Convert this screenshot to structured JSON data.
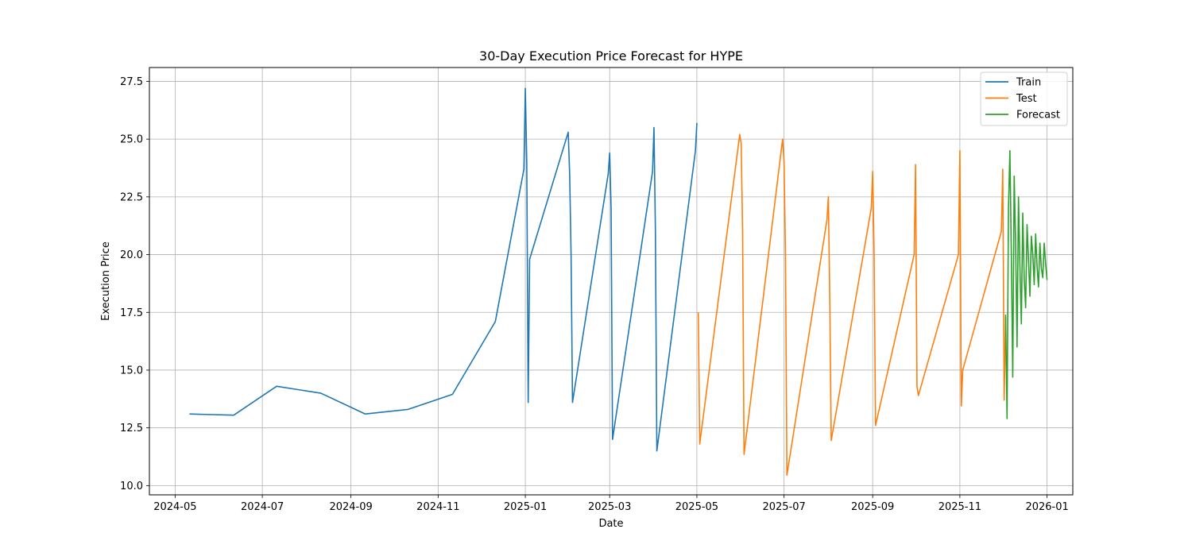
{
  "chart_data": {
    "type": "line",
    "title": "30-Day Execution Price Forecast for HYPE",
    "xlabel": "Date",
    "ylabel": "Execution Price",
    "xlim": [
      "2024-04-13",
      "2026-01-19"
    ],
    "ylim": [
      9.6,
      28.1
    ],
    "grid": true,
    "legend_position": "top-right",
    "x_ticks": [
      "2024-05",
      "2024-07",
      "2024-09",
      "2024-11",
      "2025-01",
      "2025-03",
      "2025-05",
      "2025-07",
      "2025-09",
      "2025-11",
      "2026-01"
    ],
    "y_ticks": [
      10.0,
      12.5,
      15.0,
      17.5,
      20.0,
      22.5,
      25.0,
      27.5
    ],
    "series": [
      {
        "name": "Train",
        "color": "#1f77b4",
        "points": [
          [
            "2024-05-11",
            13.1
          ],
          [
            "2024-06-11",
            13.05
          ],
          [
            "2024-07-11",
            14.3
          ],
          [
            "2024-08-11",
            14.0
          ],
          [
            "2024-09-11",
            13.1
          ],
          [
            "2024-10-11",
            13.3
          ],
          [
            "2024-11-11",
            13.95
          ],
          [
            "2024-12-11",
            17.1
          ],
          [
            "2024-12-31",
            23.7
          ],
          [
            "2025-01-01",
            27.2
          ],
          [
            "2025-01-02",
            24.0
          ],
          [
            "2025-01-03",
            13.6
          ],
          [
            "2025-01-04",
            19.8
          ],
          [
            "2025-01-31",
            25.3
          ],
          [
            "2025-02-01",
            23.5
          ],
          [
            "2025-02-02",
            20.0
          ],
          [
            "2025-02-03",
            13.6
          ],
          [
            "2025-02-28",
            23.5
          ],
          [
            "2025-03-01",
            24.4
          ],
          [
            "2025-03-02",
            22.0
          ],
          [
            "2025-03-03",
            12.0
          ],
          [
            "2025-03-31",
            23.6
          ],
          [
            "2025-04-01",
            25.5
          ],
          [
            "2025-04-02",
            21.0
          ],
          [
            "2025-04-03",
            11.5
          ],
          [
            "2025-04-30",
            24.5
          ],
          [
            "2025-05-01",
            25.7
          ]
        ]
      },
      {
        "name": "Test",
        "color": "#ff7f0e",
        "points": [
          [
            "2025-05-02",
            17.5
          ],
          [
            "2025-05-03",
            11.8
          ],
          [
            "2025-05-31",
            25.2
          ],
          [
            "2025-06-01",
            24.8
          ],
          [
            "2025-06-02",
            21.0
          ],
          [
            "2025-06-03",
            11.35
          ],
          [
            "2025-06-30",
            25.0
          ],
          [
            "2025-07-01",
            24.0
          ],
          [
            "2025-07-02",
            20.0
          ],
          [
            "2025-07-03",
            10.45
          ],
          [
            "2025-07-31",
            21.5
          ],
          [
            "2025-08-01",
            22.5
          ],
          [
            "2025-08-02",
            18.0
          ],
          [
            "2025-08-03",
            11.95
          ],
          [
            "2025-08-31",
            22.0
          ],
          [
            "2025-09-01",
            23.6
          ],
          [
            "2025-09-02",
            20.0
          ],
          [
            "2025-09-03",
            12.6
          ],
          [
            "2025-09-30",
            20.0
          ],
          [
            "2025-10-01",
            23.9
          ],
          [
            "2025-10-02",
            14.3
          ],
          [
            "2025-10-03",
            13.9
          ],
          [
            "2025-10-31",
            20.0
          ],
          [
            "2025-11-01",
            24.5
          ],
          [
            "2025-11-02",
            13.45
          ],
          [
            "2025-11-03",
            15.0
          ],
          [
            "2025-11-30",
            21.0
          ],
          [
            "2025-12-01",
            23.7
          ],
          [
            "2025-12-02",
            13.7
          ],
          [
            "2025-12-03",
            17.3
          ]
        ]
      },
      {
        "name": "Forecast",
        "color": "#2ca02c",
        "points": [
          [
            "2025-12-03",
            17.4
          ],
          [
            "2025-12-04",
            12.9
          ],
          [
            "2025-12-05",
            22.0
          ],
          [
            "2025-12-06",
            24.5
          ],
          [
            "2025-12-07",
            20.0
          ],
          [
            "2025-12-08",
            14.7
          ],
          [
            "2025-12-09",
            23.4
          ],
          [
            "2025-12-10",
            20.5
          ],
          [
            "2025-12-11",
            16.0
          ],
          [
            "2025-12-12",
            22.5
          ],
          [
            "2025-12-13",
            19.5
          ],
          [
            "2025-12-14",
            17.0
          ],
          [
            "2025-12-15",
            21.8
          ],
          [
            "2025-12-16",
            19.0
          ],
          [
            "2025-12-17",
            17.7
          ],
          [
            "2025-12-18",
            21.3
          ],
          [
            "2025-12-19",
            19.8
          ],
          [
            "2025-12-20",
            18.2
          ],
          [
            "2025-12-21",
            20.8
          ],
          [
            "2025-12-22",
            20.0
          ],
          [
            "2025-12-23",
            18.7
          ],
          [
            "2025-12-24",
            20.9
          ],
          [
            "2025-12-25",
            19.5
          ],
          [
            "2025-12-26",
            18.6
          ],
          [
            "2025-12-27",
            20.5
          ],
          [
            "2025-12-28",
            19.4
          ],
          [
            "2025-12-29",
            19.0
          ],
          [
            "2025-12-30",
            20.5
          ],
          [
            "2025-12-31",
            19.6
          ],
          [
            "2026-01-01",
            18.9
          ]
        ]
      }
    ]
  }
}
